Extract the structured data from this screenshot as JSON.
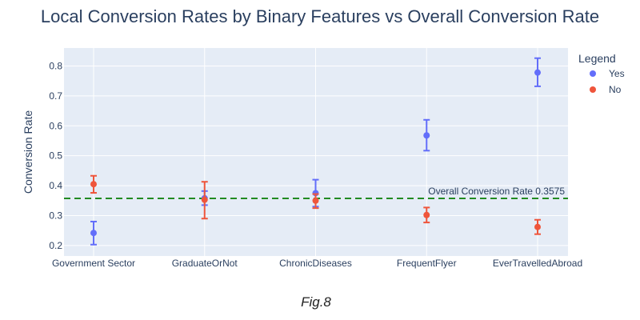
{
  "chart_data": {
    "type": "scatter",
    "title": "Local Conversion Rates by Binary Features vs Overall Conversion Rate",
    "xlabel": "",
    "ylabel": "Conversion Rate",
    "categories": [
      "Government Sector",
      "GraduateOrNot",
      "ChronicDiseases",
      "FrequentFlyer",
      "EverTravelledAbroad"
    ],
    "yticks": [
      "0.2",
      "0.3",
      "0.4",
      "0.5",
      "0.6",
      "0.7",
      "0.8"
    ],
    "ylim": [
      0.165,
      0.86
    ],
    "grid": true,
    "legend": {
      "title": "Legend",
      "placement": "top-right"
    },
    "series": [
      {
        "name": "Yes",
        "color": "#636efa",
        "values": [
          0.242,
          0.358,
          0.375,
          0.568,
          0.778
        ],
        "error_low": [
          0.203,
          0.335,
          0.33,
          0.517,
          0.732
        ],
        "error_high": [
          0.28,
          0.382,
          0.42,
          0.62,
          0.826
        ]
      },
      {
        "name": "No",
        "color": "#ef553b",
        "values": [
          0.405,
          0.353,
          0.35,
          0.302,
          0.262
        ],
        "error_low": [
          0.376,
          0.29,
          0.325,
          0.277,
          0.238
        ],
        "error_high": [
          0.433,
          0.413,
          0.372,
          0.327,
          0.286
        ]
      }
    ],
    "reference_line": {
      "value": 0.3575,
      "label": "Overall Conversion Rate 0.3575",
      "color": "#228b22"
    }
  },
  "caption": "Fig.8"
}
